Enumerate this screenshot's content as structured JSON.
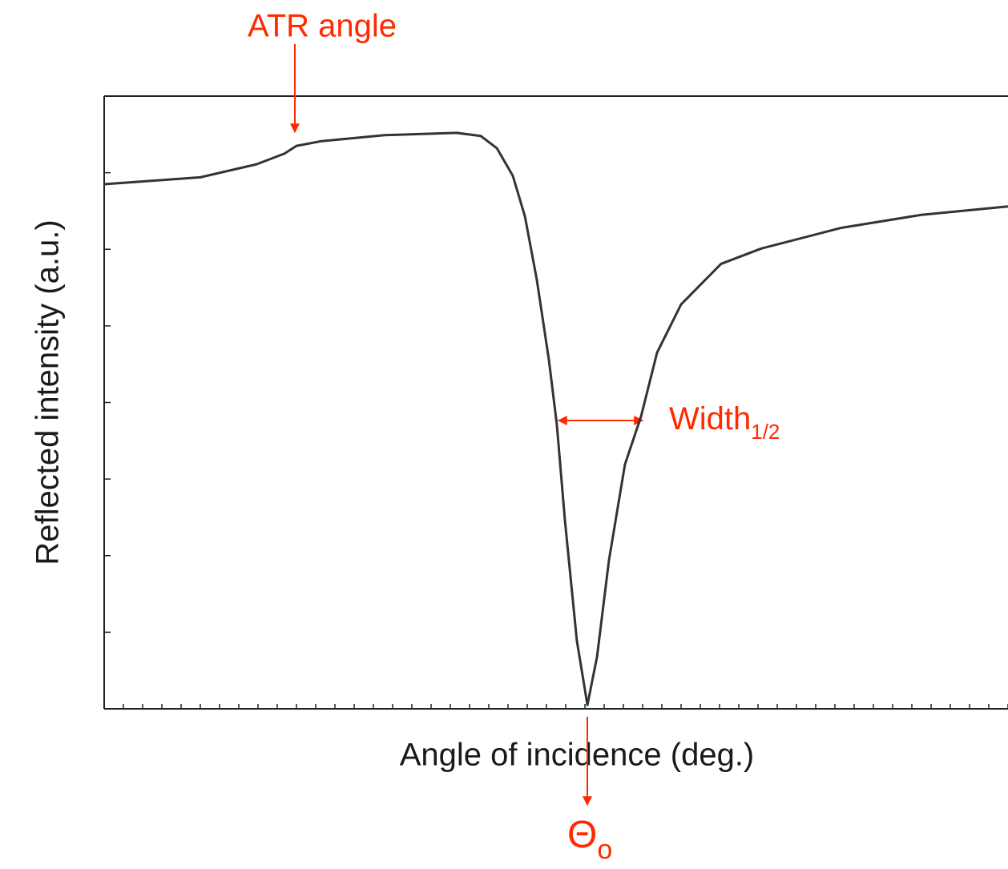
{
  "chart_data": {
    "type": "line",
    "xlabel": "Angle of incidence (deg.)",
    "ylabel": "Reflected intensity (a.u.)",
    "annotations": [
      {
        "text": "ATR angle"
      },
      {
        "text": "Width",
        "sub": "1/2"
      },
      {
        "text": "Θ",
        "sub": "o"
      }
    ],
    "x": [
      0,
      5,
      7.92,
      9.38,
      10,
      11.25,
      14.58,
      18.33,
      19.58,
      20.42,
      21.25,
      21.88,
      22.5,
      23.13,
      23.54,
      23.96,
      24.58,
      25.13,
      25.63,
      26.25,
      27.08,
      27.92,
      28.75,
      30,
      32.08,
      34.17,
      38.33,
      42.5,
      47
    ],
    "series": [
      {
        "color": "#333333",
        "values": [
          6.85,
          6.94,
          7.11,
          7.25,
          7.35,
          7.41,
          7.49,
          7.52,
          7.48,
          7.32,
          6.96,
          6.43,
          5.6,
          4.55,
          3.71,
          2.46,
          0.89,
          0.05,
          0.68,
          1.94,
          3.19,
          3.82,
          4.65,
          5.28,
          5.81,
          6.01,
          6.28,
          6.45,
          6.56
        ]
      }
    ],
    "xlim": [
      0,
      47
    ],
    "xticks": [
      0,
      1,
      2,
      3,
      4,
      5,
      6,
      7,
      8,
      9,
      10,
      11,
      12,
      13,
      14,
      15,
      16,
      17,
      18,
      19,
      20,
      21,
      22,
      23,
      24,
      25,
      26,
      27,
      28,
      29,
      30,
      31,
      32,
      33,
      34,
      35,
      36,
      37,
      38,
      39,
      40,
      41,
      42,
      43,
      44,
      45,
      46,
      47
    ],
    "ylim": [
      0,
      8
    ],
    "yticks": [
      0,
      1,
      2,
      3,
      4,
      5,
      6,
      7,
      8
    ]
  }
}
